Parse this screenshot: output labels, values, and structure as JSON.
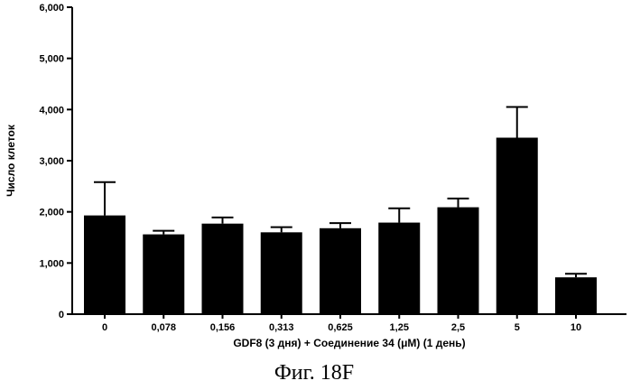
{
  "chart_data": {
    "type": "bar",
    "title": "",
    "xlabel": "GDF8 (3 дня)  + Соединение 34 (μM) (1 день)",
    "ylabel": "Число клеток",
    "categories": [
      "0",
      "0,078",
      "0,156",
      "0,313",
      "0,625",
      "1,25",
      "2,5",
      "5",
      "10"
    ],
    "series": [
      {
        "values": [
          1930,
          1560,
          1770,
          1600,
          1680,
          1790,
          2090,
          3450,
          720
        ],
        "error": [
          650,
          70,
          120,
          100,
          100,
          280,
          170,
          600,
          70
        ]
      }
    ],
    "ylim": [
      0,
      6000
    ],
    "yticks": [
      0,
      1000,
      2000,
      3000,
      4000,
      5000,
      6000
    ],
    "ytick_labels": [
      "0",
      "1,000",
      "2,000",
      "3,000",
      "4,000",
      "5,000",
      "6,000"
    ],
    "grid": false,
    "bar_color": "#000000"
  },
  "caption": "Фиг. 18F"
}
